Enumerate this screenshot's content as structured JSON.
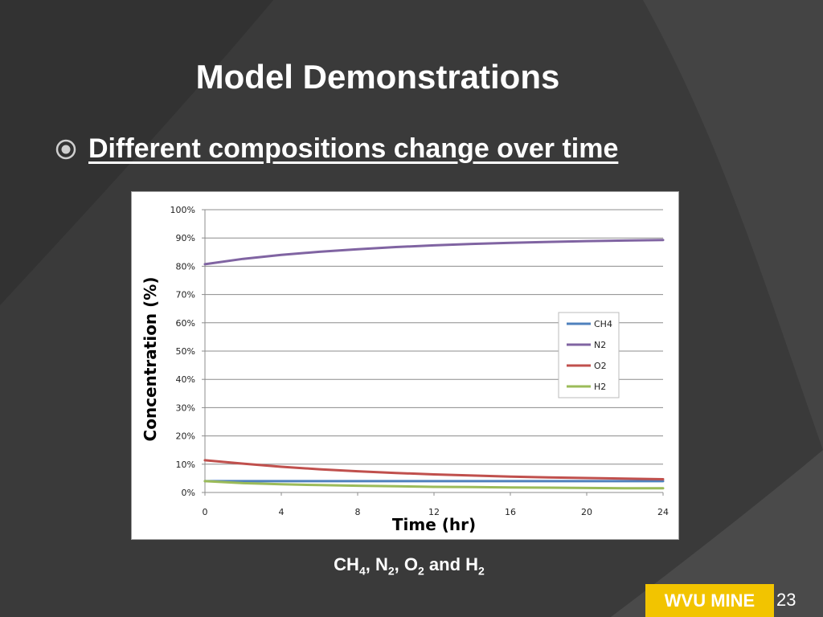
{
  "slide": {
    "title": "Model Demonstrations",
    "bullet": "Different compositions change over time",
    "caption": {
      "parts": [
        {
          "text": "CH",
          "sub": "4"
        },
        {
          "text": ", N",
          "sub": "2"
        },
        {
          "text": ", O",
          "sub": "2"
        },
        {
          "text": " and H",
          "sub": "2"
        }
      ]
    },
    "footer_label": "WVU MINE",
    "page_number": "23",
    "colors": {
      "background": "#3a3a3a",
      "footer_badge": "#f2c400"
    },
    "icons": {
      "bullet": "circle-target-icon"
    }
  },
  "chart_data": {
    "type": "line",
    "xlabel": "Time (hr)",
    "ylabel": "Concentration (%)",
    "xlim": [
      0,
      24
    ],
    "ylim": [
      0,
      100
    ],
    "x_ticks": [
      "0",
      "4",
      "8",
      "12",
      "16",
      "20",
      "24"
    ],
    "y_ticks": [
      "0%",
      "10%",
      "20%",
      "30%",
      "40%",
      "50%",
      "60%",
      "70%",
      "80%",
      "90%",
      "100%"
    ],
    "grid": "horizontal",
    "legend_position": "right-middle",
    "x": [
      0,
      2,
      4,
      6,
      8,
      10,
      12,
      14,
      16,
      18,
      20,
      22,
      24
    ],
    "series": [
      {
        "name": "CH4",
        "color": "#4f81bd",
        "values": [
          4.0,
          4.0,
          4.0,
          4.0,
          4.0,
          4.0,
          4.0,
          4.0,
          4.0,
          4.0,
          4.0,
          4.0,
          4.0
        ]
      },
      {
        "name": "N2",
        "color": "#8064a2",
        "values": [
          80.7,
          82.6,
          84.0,
          85.1,
          86.0,
          86.8,
          87.4,
          87.9,
          88.3,
          88.6,
          88.9,
          89.1,
          89.3
        ]
      },
      {
        "name": "O2",
        "color": "#c0504d",
        "values": [
          11.4,
          10.2,
          9.1,
          8.2,
          7.5,
          6.9,
          6.4,
          6.0,
          5.6,
          5.3,
          5.1,
          4.9,
          4.7
        ]
      },
      {
        "name": "H2",
        "color": "#9bbb59",
        "values": [
          4.0,
          3.3,
          2.9,
          2.6,
          2.4,
          2.2,
          2.0,
          1.9,
          1.8,
          1.7,
          1.6,
          1.5,
          1.5
        ]
      }
    ]
  }
}
